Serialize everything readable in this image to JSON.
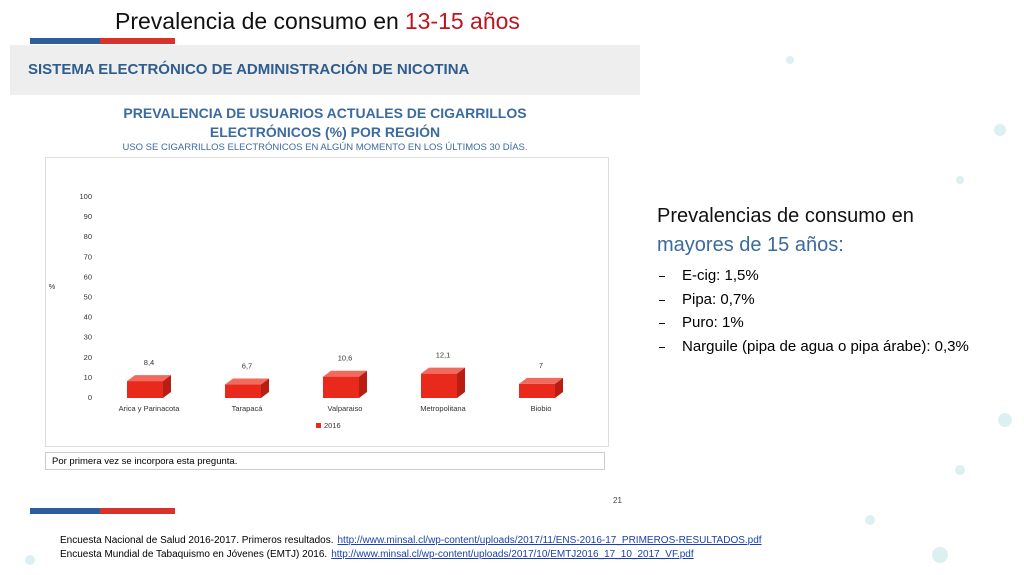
{
  "header": {
    "title": "Prevalencia de consumo en",
    "title_highlight": "13-15 años",
    "section": "SISTEMA ELECTRÓNICO DE ADMINISTRACIÓN DE NICOTINA"
  },
  "chart_data": {
    "type": "bar",
    "title": "PREVALENCIA DE USUARIOS ACTUALES DE CIGARRILLOS ELECTRÓNICOS (%) POR REGIÓN",
    "subtitle": "USO SE CIGARRILLOS ELECTRÓNICOS EN ALGÚN MOMENTO EN LOS ÚLTIMOS 30 DÍAS.",
    "y_label": "%",
    "categories": [
      "Arica y Parinacota",
      "Tarapacá",
      "Valparaiso",
      "Metropolitana",
      "Biobio"
    ],
    "series": [
      {
        "name": "2016",
        "color": "#e8291c",
        "values": [
          8.4,
          6.7,
          10.6,
          12.1,
          7
        ],
        "value_labels": [
          "8,4",
          "6,7",
          "10,6",
          "12,1",
          "7"
        ]
      }
    ],
    "ylim": [
      0,
      100
    ],
    "yticks": [
      0,
      10,
      20,
      30,
      40,
      50,
      60,
      70,
      80,
      90,
      100
    ],
    "legend": "bottom"
  },
  "note": "Por primera vez se incorpora esta pregunta.",
  "page_number": "21",
  "side_panel": {
    "heading": "Prevalencias de consumo en",
    "heading_highlight": "mayores de 15 años:",
    "items": [
      "E-cig: 1,5%",
      "Pipa: 0,7%",
      "Puro: 1%",
      "Narguile (pipa de agua o pipa árabe): 0,3%"
    ]
  },
  "references": [
    {
      "text": "Encuesta Nacional de Salud 2016-2017. Primeros resultados.",
      "url": "http://www.minsal.cl/wp-content/uploads/2017/11/ENS-2016-17_PRIMEROS-RESULTADOS.pdf"
    },
    {
      "text": "Encuesta Mundial de Tabaquismo en Jóvenes (EMTJ) 2016.",
      "url": "http://www.minsal.cl/wp-content/uploads/2017/10/EMTJ2016_17_10_2017_VF.pdf"
    }
  ]
}
